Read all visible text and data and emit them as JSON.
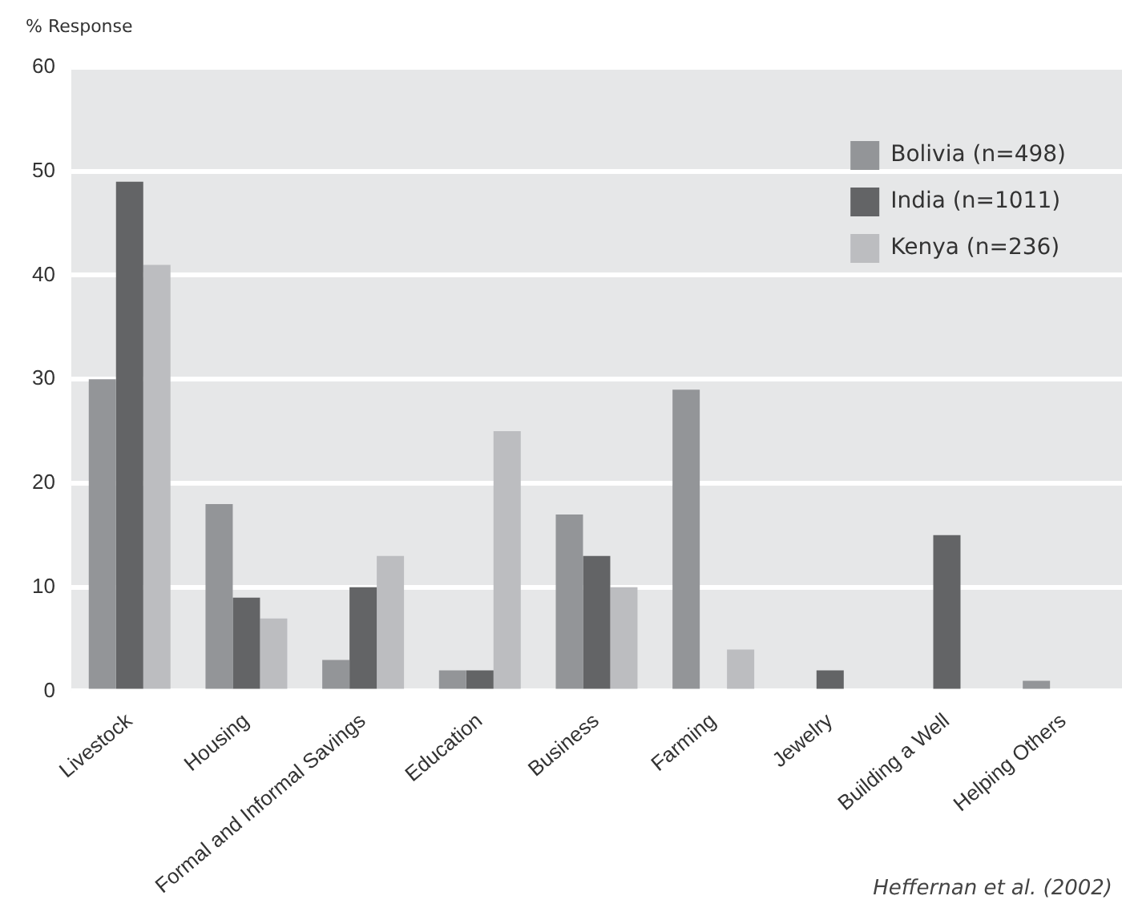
{
  "chart_data": {
    "type": "bar",
    "ylabel": "% Response",
    "categories": [
      "Livestock",
      "Housing",
      "Formal and Informal Savings",
      "Education",
      "Business",
      "Farming",
      "Jewelry",
      "Building a Well",
      "Helping Others"
    ],
    "series": [
      {
        "name": "Bolivia (n=498)",
        "color": "#939598",
        "values": [
          30,
          18,
          3,
          2,
          17,
          29,
          null,
          null,
          1
        ]
      },
      {
        "name": "India (n=1011)",
        "color": "#636466",
        "values": [
          49,
          9,
          10,
          2,
          13,
          null,
          2,
          15,
          null
        ]
      },
      {
        "name": "Kenya (n=236)",
        "color": "#bcbdc0",
        "values": [
          41,
          7,
          13,
          25,
          10,
          4,
          null,
          null,
          null
        ]
      }
    ],
    "ylim": [
      0,
      60
    ],
    "yticks": [
      0,
      10,
      20,
      30,
      40,
      50,
      60
    ],
    "grid": "y",
    "legend": "top right",
    "annotations": [
      "Heffernan et al. (2002)"
    ]
  }
}
